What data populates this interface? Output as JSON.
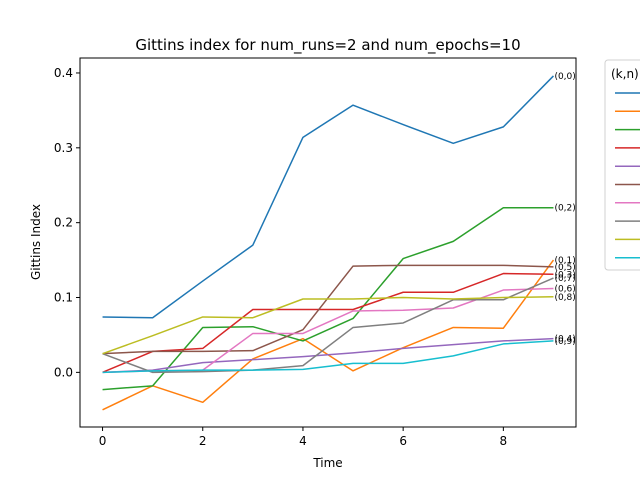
{
  "chart_data": {
    "type": "line",
    "title": "Gittins index for num_runs=2 and num_epochs=10",
    "xlabel": "Time",
    "ylabel": "Gittins Index",
    "xlim": [
      -0.45,
      9.45
    ],
    "ylim": [
      -0.073,
      0.42
    ],
    "xticks": [
      0,
      2,
      4,
      6,
      8
    ],
    "yticks": [
      0.0,
      0.1,
      0.2,
      0.3,
      0.4
    ],
    "ytick_labels": [
      "0.0",
      "0.1",
      "0.2",
      "0.3",
      "0.4"
    ],
    "grid": false,
    "legend": {
      "title": "(k,n)",
      "placement": "outside-right"
    },
    "x": [
      0,
      1,
      2,
      3,
      4,
      5,
      6,
      7,
      8,
      9
    ],
    "series": [
      {
        "color": "#1f77b4",
        "end_label": "(0,0)",
        "values": [
          0.074,
          0.073,
          0.122,
          0.17,
          0.314,
          0.357,
          0.331,
          0.306,
          0.328,
          0.396
        ]
      },
      {
        "color": "#ff7f0e",
        "end_label": "(0,1)",
        "values": [
          -0.05,
          -0.018,
          -0.04,
          0.018,
          0.045,
          0.002,
          0.033,
          0.06,
          0.059,
          0.15
        ]
      },
      {
        "color": "#2ca02c",
        "end_label": "(0,2)",
        "values": [
          -0.023,
          -0.018,
          0.06,
          0.061,
          0.042,
          0.072,
          0.152,
          0.175,
          0.22,
          0.22
        ]
      },
      {
        "color": "#d62728",
        "end_label": "(0,3)",
        "values": [
          0.0,
          0.028,
          0.032,
          0.084,
          0.084,
          0.084,
          0.107,
          0.107,
          0.132,
          0.131
        ]
      },
      {
        "color": "#9467bd",
        "end_label": "(0,4)",
        "values": [
          0.0,
          0.003,
          0.013,
          0.017,
          0.021,
          0.026,
          0.032,
          0.037,
          0.042,
          0.045
        ]
      },
      {
        "color": "#8c564b",
        "end_label": "(0,5)",
        "values": [
          0.025,
          0.028,
          0.028,
          0.029,
          0.057,
          0.142,
          0.143,
          0.143,
          0.143,
          0.141
        ]
      },
      {
        "color": "#e377c2",
        "end_label": "(0,6)",
        "values": [
          0.0,
          0.002,
          0.003,
          0.052,
          0.052,
          0.082,
          0.083,
          0.086,
          0.11,
          0.112
        ]
      },
      {
        "color": "#7f7f7f",
        "end_label": "(0,7)",
        "values": [
          0.025,
          0.0,
          0.001,
          0.003,
          0.009,
          0.06,
          0.066,
          0.097,
          0.097,
          0.126
        ]
      },
      {
        "color": "#bcbd22",
        "end_label": "(0,8)",
        "values": [
          0.025,
          0.049,
          0.074,
          0.073,
          0.098,
          0.098,
          0.1,
          0.098,
          0.1,
          0.101
        ]
      },
      {
        "color": "#17becf",
        "end_label": "(0,9)",
        "values": [
          0.0,
          0.002,
          0.003,
          0.003,
          0.004,
          0.012,
          0.012,
          0.022,
          0.038,
          0.042
        ]
      }
    ]
  }
}
